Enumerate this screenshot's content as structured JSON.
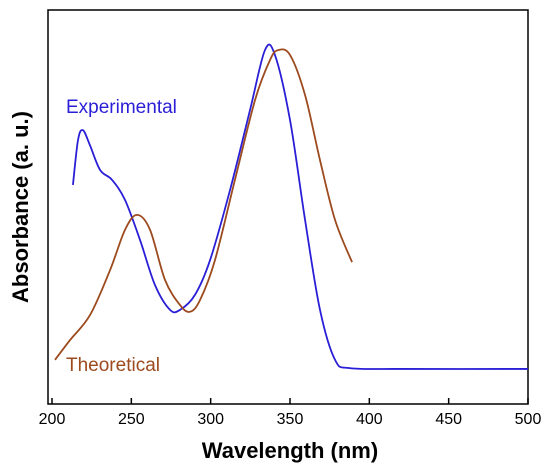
{
  "chart_data": {
    "type": "line",
    "xlabel": "Wavelength (nm)",
    "ylabel": "Absorbance (a. u.)",
    "xlim": [
      200,
      500
    ],
    "xticks": [
      200,
      250,
      300,
      350,
      400,
      450,
      500
    ],
    "ylim": [
      0,
      1
    ],
    "series": [
      {
        "name": "Experimental",
        "color": "#2a1fd6",
        "x": [
          213.2,
          216.4,
          219.5,
          223.9,
          230.3,
          237.8,
          246.0,
          255.5,
          264.9,
          274.4,
          280.7,
          290.1,
          299.6,
          312.2,
          324.8,
          334.2,
          340.5,
          350.0,
          359.5,
          368.9,
          378.4,
          387.8,
          419.3,
          500
        ],
        "values": [
          0.556,
          0.67,
          0.695,
          0.657,
          0.594,
          0.569,
          0.518,
          0.416,
          0.302,
          0.239,
          0.239,
          0.277,
          0.365,
          0.543,
          0.746,
          0.898,
          0.886,
          0.721,
          0.467,
          0.239,
          0.112,
          0.091,
          0.089,
          0.089
        ]
      },
      {
        "name": "Theoretical",
        "color": "#9c4a1e",
        "x": [
          201.9,
          211.3,
          224.0,
          236.6,
          246.0,
          253.6,
          261.8,
          271.2,
          280.7,
          287.0,
          293.3,
          302.7,
          315.3,
          328.0,
          337.4,
          342.4,
          350.0,
          359.5,
          368.9,
          378.4,
          389.1
        ],
        "values": [
          0.112,
          0.162,
          0.226,
          0.34,
          0.442,
          0.48,
          0.442,
          0.315,
          0.251,
          0.234,
          0.264,
          0.365,
          0.569,
          0.772,
          0.873,
          0.898,
          0.886,
          0.784,
          0.619,
          0.467,
          0.36
        ]
      }
    ]
  }
}
